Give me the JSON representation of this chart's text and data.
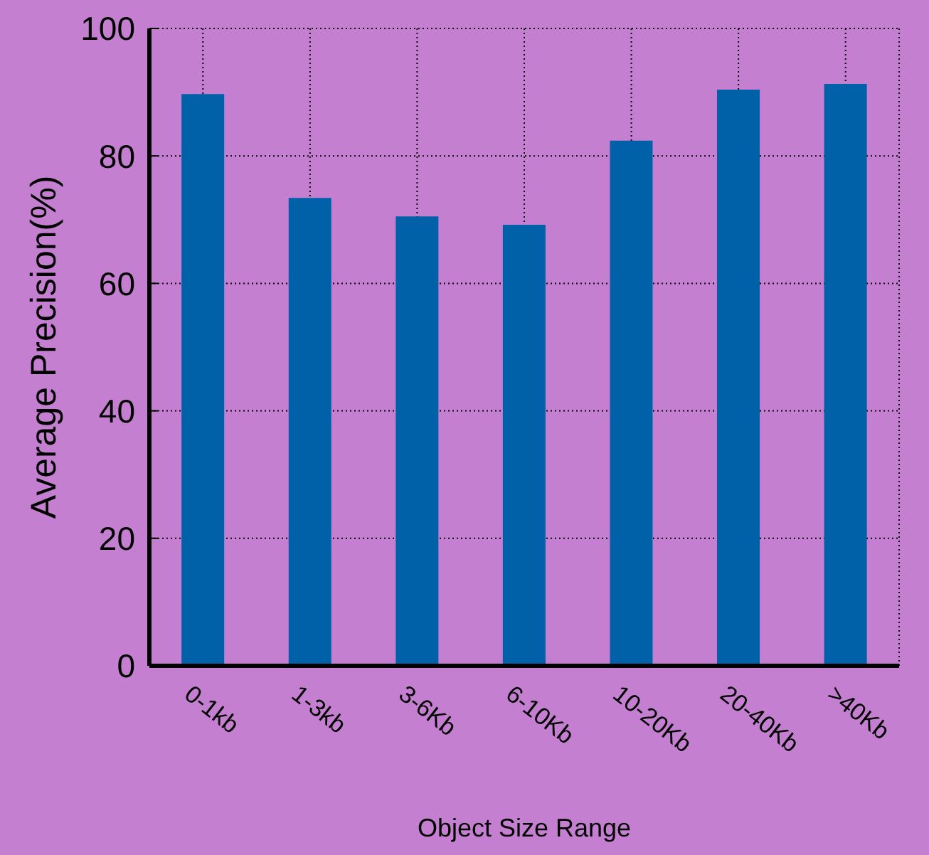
{
  "chart_data": {
    "type": "bar",
    "xlabel": "Object Size Range",
    "ylabel": "Average Precision(%)",
    "categories": [
      "0-1kb",
      "1-3kb",
      "3-6Kb",
      "6-10Kb",
      "10-20Kb",
      "20-40Kb",
      ">40Kb"
    ],
    "values": [
      89.7,
      73.4,
      70.5,
      69.2,
      82.4,
      90.4,
      91.3
    ],
    "color": "#0060a8",
    "ylim": [
      0,
      100
    ],
    "yticks": [
      0,
      20,
      40,
      60,
      80,
      100
    ],
    "grid": true
  }
}
